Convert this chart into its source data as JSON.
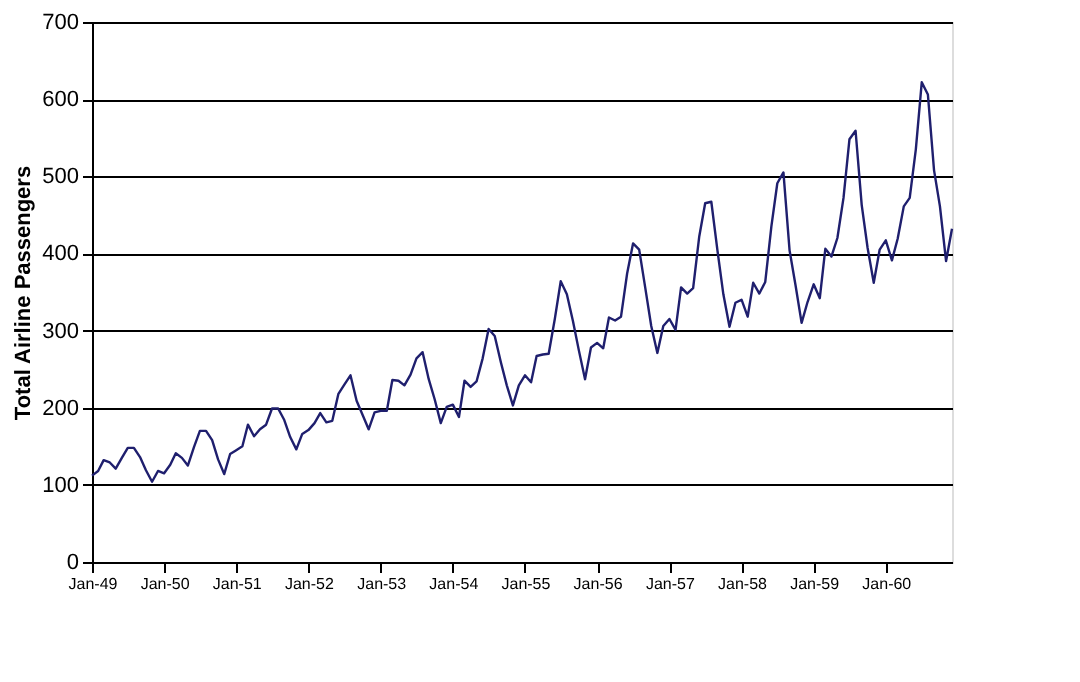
{
  "chart_data": {
    "type": "line",
    "ylabel": "Total Airline Passengers",
    "x": [
      "1949-01",
      "1949-02",
      "1949-03",
      "1949-04",
      "1949-05",
      "1949-06",
      "1949-07",
      "1949-08",
      "1949-09",
      "1949-10",
      "1949-11",
      "1949-12",
      "1950-01",
      "1950-02",
      "1950-03",
      "1950-04",
      "1950-05",
      "1950-06",
      "1950-07",
      "1950-08",
      "1950-09",
      "1950-10",
      "1950-11",
      "1950-12",
      "1951-01",
      "1951-02",
      "1951-03",
      "1951-04",
      "1951-05",
      "1951-06",
      "1951-07",
      "1951-08",
      "1951-09",
      "1951-10",
      "1951-11",
      "1951-12",
      "1952-01",
      "1952-02",
      "1952-03",
      "1952-04",
      "1952-05",
      "1952-06",
      "1952-07",
      "1952-08",
      "1952-09",
      "1952-10",
      "1952-11",
      "1952-12",
      "1953-01",
      "1953-02",
      "1953-03",
      "1953-04",
      "1953-05",
      "1953-06",
      "1953-07",
      "1953-08",
      "1953-09",
      "1953-10",
      "1953-11",
      "1953-12",
      "1954-01",
      "1954-02",
      "1954-03",
      "1954-04",
      "1954-05",
      "1954-06",
      "1954-07",
      "1954-08",
      "1954-09",
      "1954-10",
      "1954-11",
      "1954-12",
      "1955-01",
      "1955-02",
      "1955-03",
      "1955-04",
      "1955-05",
      "1955-06",
      "1955-07",
      "1955-08",
      "1955-09",
      "1955-10",
      "1955-11",
      "1955-12",
      "1956-01",
      "1956-02",
      "1956-03",
      "1956-04",
      "1956-05",
      "1956-06",
      "1956-07",
      "1956-08",
      "1956-09",
      "1956-10",
      "1956-11",
      "1956-12",
      "1957-01",
      "1957-02",
      "1957-03",
      "1957-04",
      "1957-05",
      "1957-06",
      "1957-07",
      "1957-08",
      "1957-09",
      "1957-10",
      "1957-11",
      "1957-12",
      "1958-01",
      "1958-02",
      "1958-03",
      "1958-04",
      "1958-05",
      "1958-06",
      "1958-07",
      "1958-08",
      "1958-09",
      "1958-10",
      "1958-11",
      "1958-12",
      "1959-01",
      "1959-02",
      "1959-03",
      "1959-04",
      "1959-05",
      "1959-06",
      "1959-07",
      "1959-08",
      "1959-09",
      "1959-10",
      "1959-11",
      "1959-12",
      "1960-01",
      "1960-02",
      "1960-03",
      "1960-04",
      "1960-05",
      "1960-06",
      "1960-07",
      "1960-08",
      "1960-09",
      "1960-10",
      "1960-11",
      "1960-12"
    ],
    "series": [
      {
        "color": "#1f1f6e",
        "values": [
          112,
          118,
          132,
          129,
          121,
          135,
          148,
          148,
          136,
          119,
          104,
          118,
          115,
          126,
          141,
          135,
          125,
          149,
          170,
          170,
          158,
          133,
          114,
          140,
          145,
          150,
          178,
          163,
          172,
          178,
          199,
          199,
          184,
          162,
          146,
          166,
          171,
          180,
          193,
          181,
          183,
          218,
          230,
          242,
          209,
          191,
          172,
          194,
          196,
          196,
          236,
          235,
          229,
          243,
          264,
          272,
          237,
          211,
          180,
          201,
          204,
          188,
          235,
          227,
          234,
          264,
          302,
          293,
          259,
          229,
          203,
          229,
          242,
          233,
          267,
          269,
          270,
          315,
          364,
          347,
          312,
          274,
          237,
          278,
          284,
          277,
          317,
          313,
          318,
          374,
          413,
          405,
          355,
          306,
          271,
          306,
          315,
          301,
          356,
          348,
          355,
          422,
          465,
          467,
          404,
          347,
          305,
          336,
          340,
          318,
          362,
          348,
          363,
          435,
          491,
          505,
          404,
          359,
          310,
          337,
          360,
          342,
          406,
          396,
          420,
          472,
          548,
          559,
          463,
          407,
          362,
          405,
          417,
          391,
          419,
          461,
          472,
          535,
          622,
          606,
          508,
          461,
          390,
          432
        ]
      }
    ],
    "xlim": [
      "1949-01",
      "1960-12"
    ],
    "xticks": [
      {
        "value": "1949-01",
        "label": "Jan-49"
      },
      {
        "value": "1950-01",
        "label": "Jan-50"
      },
      {
        "value": "1951-01",
        "label": "Jan-51"
      },
      {
        "value": "1952-01",
        "label": "Jan-52"
      },
      {
        "value": "1953-01",
        "label": "Jan-53"
      },
      {
        "value": "1954-01",
        "label": "Jan-54"
      },
      {
        "value": "1955-01",
        "label": "Jan-55"
      },
      {
        "value": "1956-01",
        "label": "Jan-56"
      },
      {
        "value": "1957-01",
        "label": "Jan-57"
      },
      {
        "value": "1958-01",
        "label": "Jan-58"
      },
      {
        "value": "1959-01",
        "label": "Jan-59"
      },
      {
        "value": "1960-01",
        "label": "Jan-60"
      }
    ],
    "ylim": [
      0,
      700
    ],
    "yticks": [
      0,
      100,
      200,
      300,
      400,
      500,
      600,
      700
    ],
    "grid": "y",
    "legend": false,
    "marker": "none",
    "line_style": "solid"
  }
}
